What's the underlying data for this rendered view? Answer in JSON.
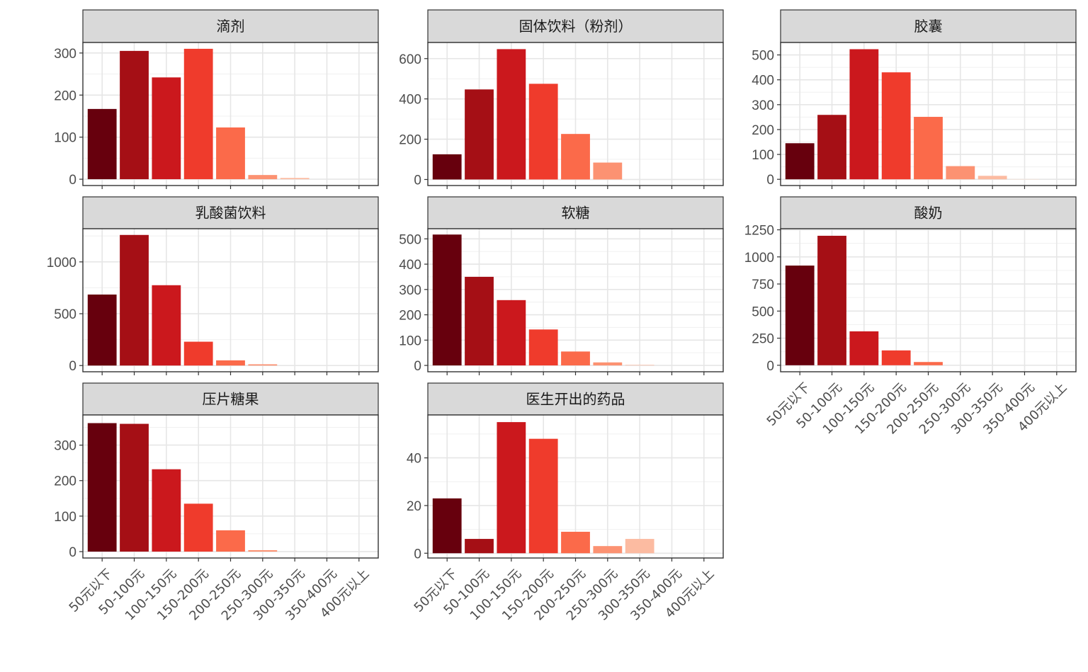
{
  "chart_data": {
    "type": "bar",
    "layout": "facet-wrap 3 columns, free y scales",
    "categories": [
      "50元以下",
      "50-100元",
      "100-150元",
      "150-200元",
      "200-250元",
      "250-300元",
      "300-350元",
      "350-400元",
      "400元以上"
    ],
    "category_colors": [
      "#67000d",
      "#a50f15",
      "#cb181d",
      "#ef3b2c",
      "#fb6a4a",
      "#fc9272",
      "#fcbba1",
      "#fee0d2",
      "#fff5f0"
    ],
    "grid": true,
    "panels": [
      {
        "title": "滴剂",
        "values": [
          167,
          305,
          242,
          310,
          123,
          10,
          3,
          0,
          0
        ],
        "ylim": [
          -15,
          325
        ],
        "yticks": [
          0,
          100,
          200,
          300
        ]
      },
      {
        "title": "固体饮料（粉剂）",
        "values": [
          125,
          447,
          647,
          475,
          226,
          84,
          0,
          0,
          0
        ],
        "ylim": [
          -30,
          680
        ],
        "yticks": [
          0,
          200,
          400,
          600
        ]
      },
      {
        "title": "胶囊",
        "values": [
          145,
          259,
          523,
          430,
          251,
          53,
          14,
          1,
          0
        ],
        "ylim": [
          -25,
          550
        ],
        "yticks": [
          0,
          100,
          200,
          300,
          400,
          500
        ]
      },
      {
        "title": "乳酸菌饮料",
        "values": [
          685,
          1260,
          775,
          230,
          50,
          12,
          0,
          0,
          0
        ],
        "ylim": [
          -60,
          1320
        ],
        "yticks": [
          0,
          500,
          1000
        ]
      },
      {
        "title": "软糖",
        "values": [
          517,
          350,
          258,
          142,
          55,
          12,
          2,
          0,
          0
        ],
        "ylim": [
          -25,
          540
        ],
        "yticks": [
          0,
          100,
          200,
          300,
          400,
          500
        ]
      },
      {
        "title": "酸奶",
        "values": [
          920,
          1195,
          313,
          137,
          30,
          0,
          0,
          0,
          0
        ],
        "ylim": [
          -60,
          1260
        ],
        "yticks": [
          0,
          250,
          500,
          750,
          1000,
          1250
        ]
      },
      {
        "title": "压片糖果",
        "values": [
          362,
          360,
          232,
          135,
          60,
          4,
          0,
          0,
          0
        ],
        "ylim": [
          -18,
          385
        ],
        "yticks": [
          0,
          100,
          200,
          300
        ]
      },
      {
        "title": "医生开出的药品",
        "values": [
          23,
          6,
          55,
          48,
          9,
          3,
          6,
          0,
          0
        ],
        "ylim": [
          -2,
          58
        ],
        "yticks": [
          0,
          20,
          40
        ]
      }
    ]
  }
}
